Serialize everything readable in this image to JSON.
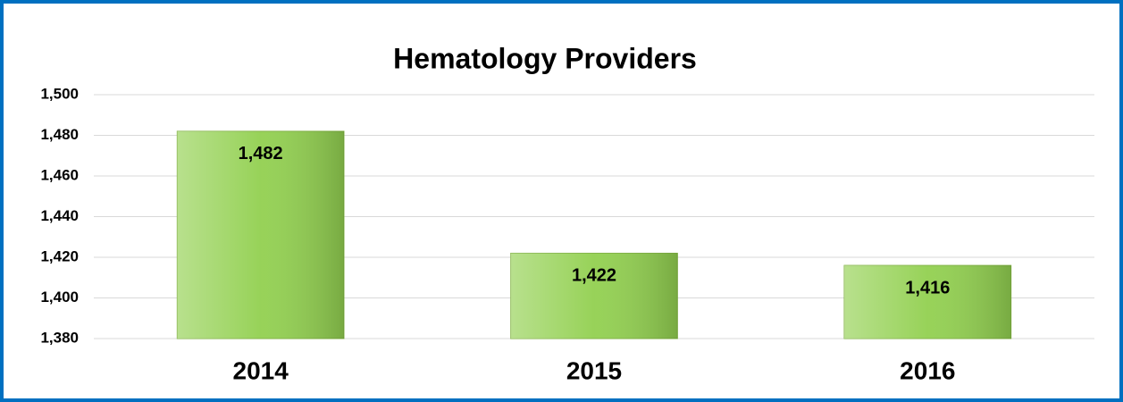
{
  "chart_data": {
    "type": "bar",
    "title": "Hematology Providers",
    "categories": [
      "2014",
      "2015",
      "2016"
    ],
    "values": [
      1482,
      1422,
      1416
    ],
    "value_labels": [
      "1,482",
      "1,422",
      "1,416"
    ],
    "color": "#92d050",
    "ylim": [
      1380,
      1500
    ],
    "yticks": [
      {
        "value": 1380,
        "label": "1,380"
      },
      {
        "value": 1400,
        "label": "1,400"
      },
      {
        "value": 1420,
        "label": "1,420"
      },
      {
        "value": 1440,
        "label": "1,440"
      },
      {
        "value": 1460,
        "label": "1,460"
      },
      {
        "value": 1480,
        "label": "1,480"
      },
      {
        "value": 1500,
        "label": "1,500"
      }
    ],
    "grid": true
  }
}
